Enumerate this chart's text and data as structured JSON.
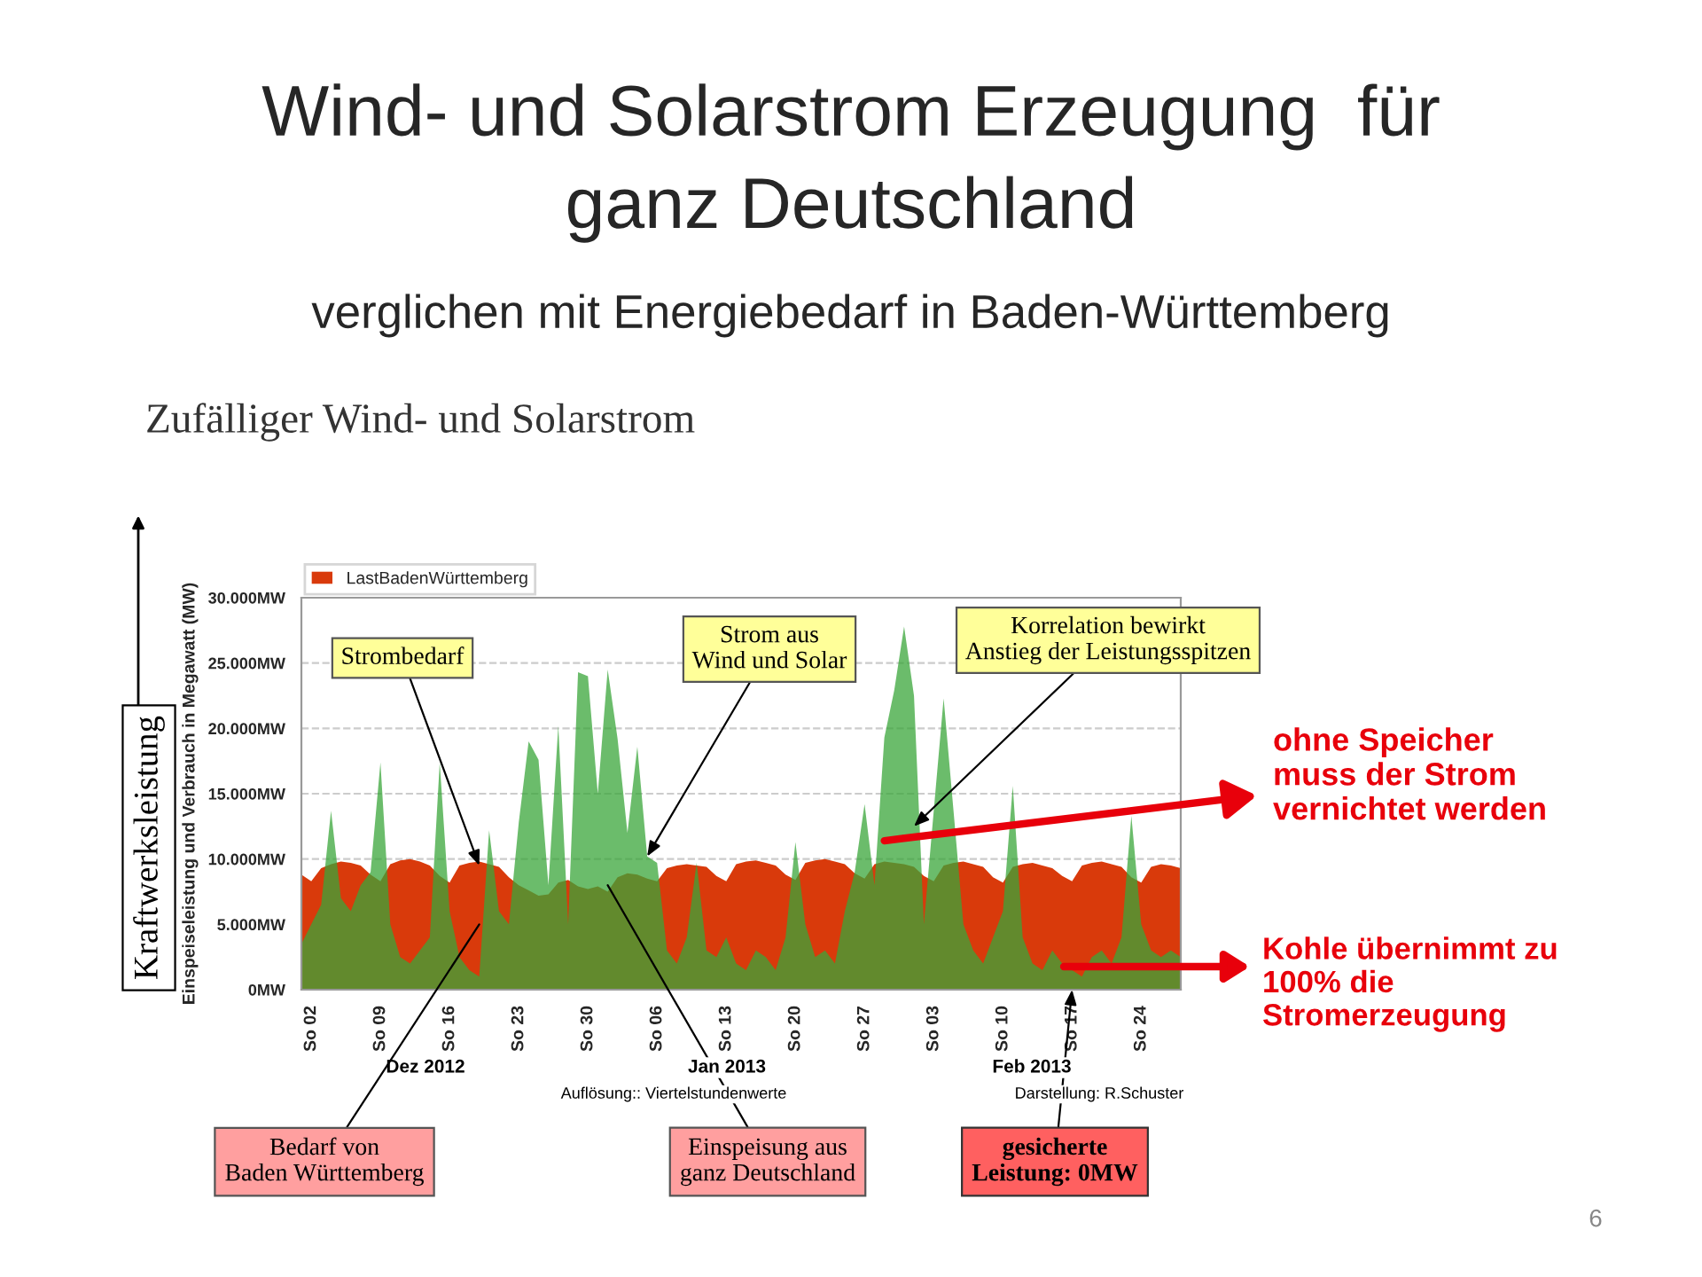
{
  "chart_data": {
    "type": "area",
    "title": "Wind- und Solarstrom Erzeugung  für\nganz Deutschland",
    "subtitle": "verglichen mit Energiebedarf in Baden-Württemberg",
    "ylabel": "Einspeiseleistung und Verbrauch in Megawatt (MW)",
    "x": [
      "2012-12-01",
      "2012-12-02",
      "2012-12-03",
      "2012-12-04",
      "2012-12-05",
      "2012-12-06",
      "2012-12-07",
      "2012-12-08",
      "2012-12-09",
      "2012-12-10",
      "2012-12-11",
      "2012-12-12",
      "2012-12-13",
      "2012-12-14",
      "2012-12-15",
      "2012-12-16",
      "2012-12-17",
      "2012-12-18",
      "2012-12-19",
      "2012-12-20",
      "2012-12-21",
      "2012-12-22",
      "2012-12-23",
      "2012-12-24",
      "2012-12-25",
      "2012-12-26",
      "2012-12-27",
      "2012-12-28",
      "2012-12-29",
      "2012-12-30",
      "2012-12-31",
      "2013-01-01",
      "2013-01-02",
      "2013-01-03",
      "2013-01-04",
      "2013-01-05",
      "2013-01-06",
      "2013-01-07",
      "2013-01-08",
      "2013-01-09",
      "2013-01-10",
      "2013-01-11",
      "2013-01-12",
      "2013-01-13",
      "2013-01-14",
      "2013-01-15",
      "2013-01-16",
      "2013-01-17",
      "2013-01-18",
      "2013-01-19",
      "2013-01-20",
      "2013-01-21",
      "2013-01-22",
      "2013-01-23",
      "2013-01-24",
      "2013-01-25",
      "2013-01-26",
      "2013-01-27",
      "2013-01-28",
      "2013-01-29",
      "2013-01-30",
      "2013-01-31",
      "2013-02-01",
      "2013-02-02",
      "2013-02-03",
      "2013-02-04",
      "2013-02-05",
      "2013-02-06",
      "2013-02-07",
      "2013-02-08",
      "2013-02-09",
      "2013-02-10",
      "2013-02-11",
      "2013-02-12",
      "2013-02-13",
      "2013-02-14",
      "2013-02-15",
      "2013-02-16",
      "2013-02-17",
      "2013-02-18",
      "2013-02-19",
      "2013-02-20",
      "2013-02-21",
      "2013-02-22",
      "2013-02-23",
      "2013-02-24",
      "2013-02-25",
      "2013-02-26",
      "2013-02-27",
      "2013-02-28"
    ],
    "series": [
      {
        "name": "LastBadenWürttemberg",
        "color": "#d93a0b",
        "values": [
          8800,
          8300,
          9300,
          9600,
          9800,
          9700,
          9500,
          8800,
          8300,
          9600,
          9900,
          10000,
          9800,
          9500,
          8700,
          8200,
          9500,
          9700,
          9800,
          9600,
          9400,
          8600,
          8000,
          7600,
          7200,
          7300,
          8200,
          8400,
          7900,
          7700,
          7900,
          7500,
          8600,
          8900,
          8800,
          8500,
          8300,
          9300,
          9500,
          9600,
          9500,
          9400,
          8700,
          8300,
          9600,
          9800,
          9900,
          9700,
          9500,
          8800,
          8400,
          9700,
          9900,
          10000,
          9800,
          9600,
          8900,
          8500,
          9600,
          9800,
          9700,
          9600,
          9400,
          8700,
          8300,
          9500,
          9700,
          9800,
          9600,
          9400,
          8600,
          8200,
          9400,
          9600,
          9700,
          9500,
          9300,
          8700,
          8300,
          9500,
          9700,
          9800,
          9600,
          9400,
          8600,
          8200,
          9400,
          9600,
          9500,
          9300
        ]
      },
      {
        "color": "#3aa53a",
        "values": [
          3500,
          5000,
          6500,
          13700,
          7000,
          6000,
          8000,
          9000,
          17400,
          5000,
          2500,
          2000,
          3000,
          4000,
          17400,
          6000,
          2500,
          1500,
          1000,
          12200,
          6000,
          5000,
          12800,
          19000,
          17600,
          8000,
          20200,
          5000,
          24300,
          24000,
          15000,
          24500,
          19200,
          12000,
          18600,
          10200,
          9700,
          3000,
          2000,
          4000,
          9700,
          3000,
          2500,
          4000,
          2000,
          1500,
          3000,
          2500,
          1500,
          4000,
          11300,
          5000,
          2500,
          3000,
          2000,
          6000,
          9000,
          14200,
          8000,
          19300,
          22900,
          27800,
          22500,
          5000,
          13700,
          22300,
          13700,
          5000,
          3000,
          2000,
          4000,
          6000,
          15600,
          4000,
          2000,
          1500,
          3000,
          2000,
          1500,
          1000,
          2500,
          3000,
          2000,
          4000,
          13300,
          5000,
          3000,
          2500,
          3000,
          2500
        ]
      }
    ],
    "xlim": [
      "2012-12-01",
      "2013-02-28"
    ],
    "xticks": [
      {
        "value": "2012-12-02",
        "label": "So 02"
      },
      {
        "value": "2012-12-09",
        "label": "So 09"
      },
      {
        "value": "2012-12-16",
        "label": "So 16"
      },
      {
        "value": "2012-12-23",
        "label": "So 23"
      },
      {
        "value": "2012-12-30",
        "label": "So 30"
      },
      {
        "value": "2013-01-06",
        "label": "So 06"
      },
      {
        "value": "2013-01-13",
        "label": "So 13"
      },
      {
        "value": "2013-01-20",
        "label": "So 20"
      },
      {
        "value": "2013-01-27",
        "label": "So 27"
      },
      {
        "value": "2013-02-03",
        "label": "So 03"
      },
      {
        "value": "2013-02-10",
        "label": "So 10"
      },
      {
        "value": "2013-02-17",
        "label": "So 17"
      },
      {
        "value": "2013-02-24",
        "label": "So 24"
      }
    ],
    "ylim": [
      0,
      30000
    ],
    "yticks": [
      {
        "value": 0,
        "label": "0MW"
      },
      {
        "value": 5000,
        "label": "5.000MW"
      },
      {
        "value": 10000,
        "label": "10.000MW"
      },
      {
        "value": 15000,
        "label": "15.000MW"
      },
      {
        "value": 20000,
        "label": "20.000MW"
      },
      {
        "value": 25000,
        "label": "25.000MW"
      },
      {
        "value": 30000,
        "label": "30.000MW"
      }
    ],
    "grid": "y",
    "legend": "top left",
    "annotations": [
      "Zufälliger Wind- und Solarstrom",
      "Kraftwerksleistung",
      {
        "text": "Strombedarf",
        "x": "2012-12-19",
        "y": 9500
      },
      {
        "text": "Strom aus\nWind und Solar",
        "x": "2013-01-05",
        "y": 10200
      },
      {
        "text": "Korrelation bewirkt\nAnstieg der Leistungsspitzen",
        "x": "2013-02-01",
        "y": 12500
      },
      {
        "text": "ohne Speicher\nmuss der Strom\nvernichtet werden",
        "x": "2013-01-29",
        "y": 11400
      },
      "Kohle übernimmt zu\n100% die\nStromerzeugung",
      {
        "text": "Bedarf von\nBaden Württemberg",
        "x": "2012-12-19",
        "y": 5000
      },
      {
        "text": "Einspeisung aus\nganz Deutschland",
        "x": "2013-01-01",
        "y": 8000
      },
      {
        "text": "gesicherte\nLeistung: 0MW",
        "x": "2013-02-17",
        "y": 0
      },
      "Auflösung:: Viertelstundenwerte",
      "Darstellung: R.Schuster",
      "6",
      "Dez 2012",
      "Jan 2013",
      "Feb 2013"
    ]
  }
}
